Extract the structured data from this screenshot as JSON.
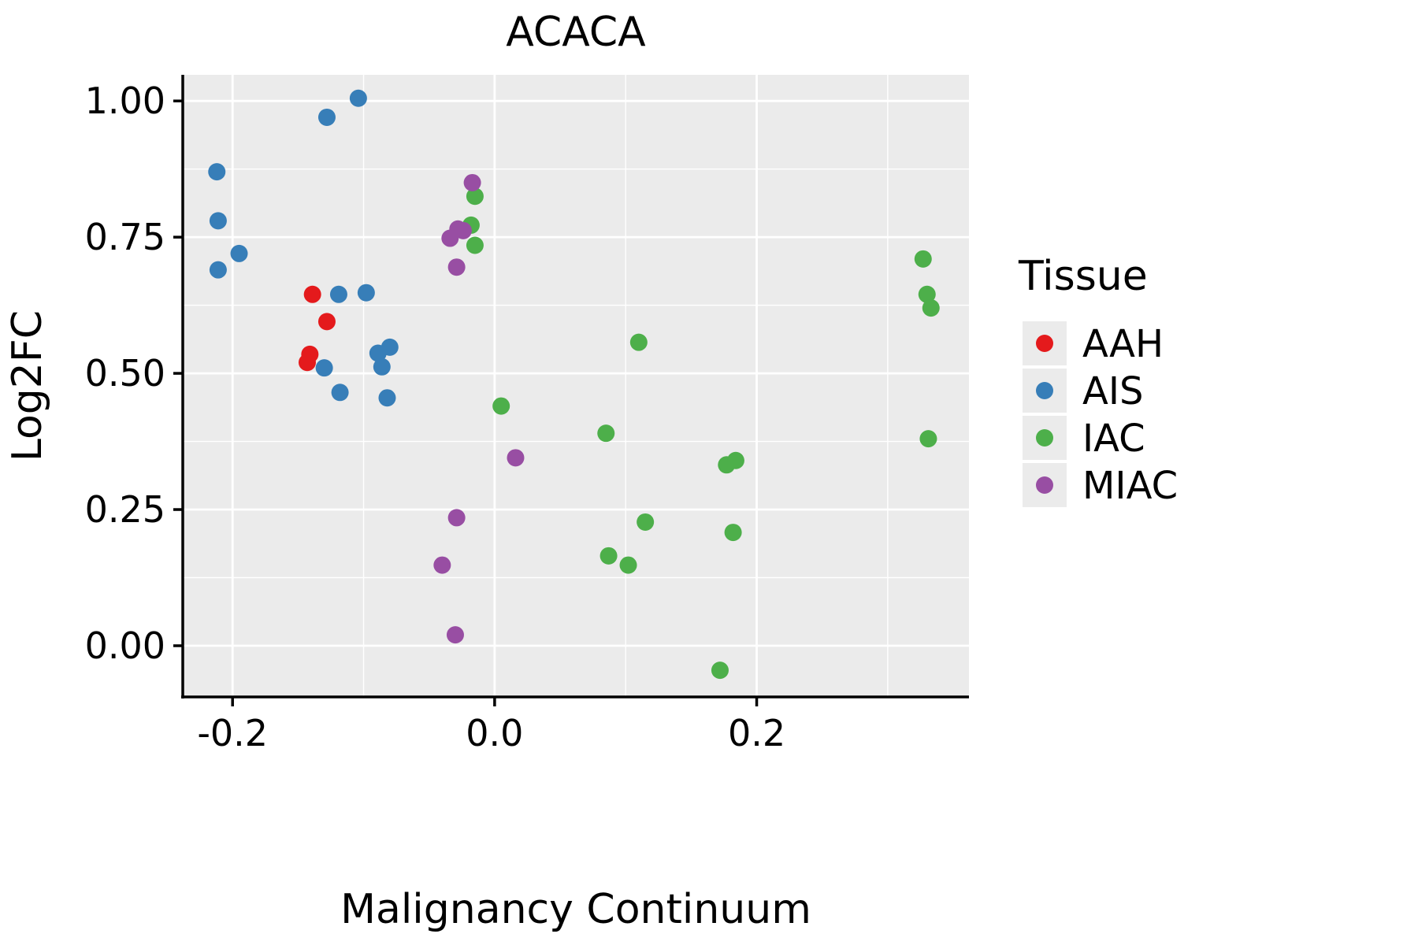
{
  "chart_data": {
    "type": "scatter",
    "title": "ACACA",
    "xlabel": "Malignancy Continuum",
    "ylabel": "Log2FC",
    "legend_title": "Tissue",
    "xlim": [
      -0.238,
      0.362
    ],
    "ylim": [
      -0.094,
      1.048
    ],
    "xticks": [
      -0.2,
      0.0,
      0.2
    ],
    "xtick_labels": [
      "-0.2",
      "0.0",
      "0.2"
    ],
    "yticks": [
      0.0,
      0.25,
      0.5,
      0.75,
      1.0
    ],
    "ytick_labels": [
      "0.00",
      "0.25",
      "0.50",
      "0.75",
      "1.00"
    ],
    "minor_xticks": [
      -0.1,
      0.1,
      0.3
    ],
    "minor_yticks": [
      0.125,
      0.375,
      0.625,
      0.875
    ],
    "panel_bg": "#EBEBEB",
    "grid_color": "#FFFFFF",
    "axis_color": "#000000",
    "legend_position": "right",
    "grid": true,
    "point_radius": 11,
    "series": [
      {
        "name": "AAH",
        "color": "#E41A1C",
        "points": [
          [
            -0.139,
            0.645
          ],
          [
            -0.128,
            0.595
          ],
          [
            -0.141,
            0.535
          ],
          [
            -0.143,
            0.52
          ]
        ]
      },
      {
        "name": "AIS",
        "color": "#377EB8",
        "points": [
          [
            -0.212,
            0.87
          ],
          [
            -0.211,
            0.78
          ],
          [
            -0.211,
            0.69
          ],
          [
            -0.195,
            0.72
          ],
          [
            -0.128,
            0.97
          ],
          [
            -0.104,
            1.005
          ],
          [
            -0.119,
            0.645
          ],
          [
            -0.098,
            0.648
          ],
          [
            -0.13,
            0.51
          ],
          [
            -0.118,
            0.465
          ],
          [
            -0.089,
            0.537
          ],
          [
            -0.08,
            0.548
          ],
          [
            -0.086,
            0.512
          ],
          [
            -0.082,
            0.455
          ]
        ]
      },
      {
        "name": "IAC",
        "color": "#4DAF4A",
        "points": [
          [
            -0.015,
            0.825
          ],
          [
            -0.018,
            0.772
          ],
          [
            -0.015,
            0.735
          ],
          [
            0.005,
            0.44
          ],
          [
            0.085,
            0.39
          ],
          [
            0.11,
            0.557
          ],
          [
            0.115,
            0.227
          ],
          [
            0.087,
            0.165
          ],
          [
            0.102,
            0.148
          ],
          [
            0.177,
            0.332
          ],
          [
            0.184,
            0.34
          ],
          [
            0.182,
            0.208
          ],
          [
            0.172,
            -0.045
          ],
          [
            0.327,
            0.71
          ],
          [
            0.33,
            0.645
          ],
          [
            0.333,
            0.62
          ],
          [
            0.331,
            0.38
          ]
        ]
      },
      {
        "name": "MIAC",
        "color": "#984EA3",
        "points": [
          [
            -0.017,
            0.85
          ],
          [
            -0.028,
            0.765
          ],
          [
            -0.034,
            0.748
          ],
          [
            -0.024,
            0.762
          ],
          [
            -0.029,
            0.695
          ],
          [
            0.016,
            0.345
          ],
          [
            -0.029,
            0.235
          ],
          [
            -0.04,
            0.148
          ],
          [
            -0.03,
            0.02
          ]
        ]
      }
    ]
  }
}
